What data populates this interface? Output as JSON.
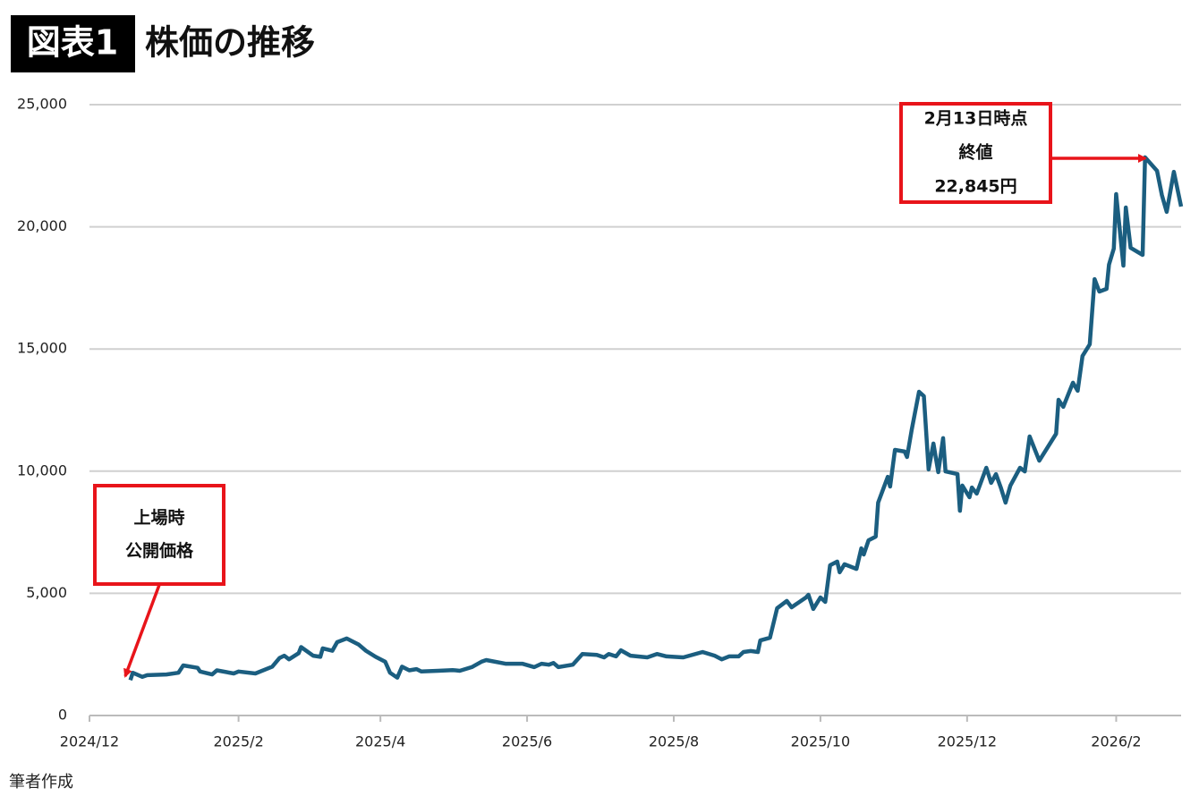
{
  "chart_data": {
    "type": "line",
    "title_badge": "図表1",
    "title": "株価の推移",
    "source": "筆者作成",
    "color": "#1b5e80",
    "grid": true,
    "xlim": [
      0,
      454
    ],
    "xticks": [
      {
        "value": 0,
        "label": "2024/12"
      },
      {
        "value": 62,
        "label": "2025/2"
      },
      {
        "value": 121,
        "label": "2025/4"
      },
      {
        "value": 182,
        "label": "2025/6"
      },
      {
        "value": 243,
        "label": "2025/8"
      },
      {
        "value": 304,
        "label": "2025/10"
      },
      {
        "value": 365,
        "label": "2025/12"
      },
      {
        "value": 427,
        "label": "2026/2"
      }
    ],
    "ylim": [
      0,
      25000
    ],
    "yticks": [
      0,
      {
        "value": 5000,
        "label": "5,000"
      },
      {
        "value": 10000,
        "label": "10,000"
      },
      {
        "value": 15000,
        "label": "15,000"
      },
      {
        "value": 20000,
        "label": "20,000"
      },
      {
        "value": 25000,
        "label": "25,000"
      }
    ],
    "x": [
      17,
      18,
      22,
      24,
      32,
      37,
      39,
      45,
      46,
      51,
      53,
      60,
      62,
      69,
      76,
      79,
      81,
      83,
      87,
      88,
      93,
      96,
      97,
      101,
      103,
      107,
      112,
      115,
      119,
      123,
      125,
      128,
      130,
      133,
      136,
      138,
      145,
      151,
      154,
      159,
      163,
      165,
      173,
      180,
      185,
      188,
      191,
      193,
      195,
      201,
      205,
      211,
      214,
      216,
      219,
      221,
      225,
      232,
      236,
      240,
      247,
      255,
      260,
      263,
      266,
      270,
      272,
      275,
      278,
      279,
      283,
      286,
      290,
      292,
      298,
      299,
      301,
      304,
      306,
      308,
      311,
      312,
      314,
      319,
      321,
      322,
      324,
      327,
      328,
      332,
      333,
      335,
      339,
      340,
      342,
      345,
      347,
      349,
      351,
      353,
      355,
      356,
      361,
      362,
      363,
      366,
      367,
      369,
      373,
      375,
      377,
      379,
      381,
      383,
      387,
      389,
      390,
      391,
      395,
      402,
      403,
      405,
      409,
      411,
      413,
      416,
      418,
      420,
      423,
      424,
      426,
      427,
      430,
      431,
      433,
      438,
      439,
      441,
      444,
      446,
      448,
      451,
      454
    ],
    "values": [
      1450,
      1750,
      1580,
      1650,
      1680,
      1750,
      2050,
      1950,
      1800,
      1680,
      1850,
      1720,
      1800,
      1720,
      2000,
      2350,
      2450,
      2300,
      2550,
      2800,
      2450,
      2400,
      2750,
      2650,
      3000,
      3150,
      2900,
      2650,
      2400,
      2200,
      1750,
      1550,
      2000,
      1850,
      1900,
      1800,
      1830,
      1860,
      1830,
      1980,
      2200,
      2270,
      2120,
      2120,
      1980,
      2120,
      2080,
      2150,
      1980,
      2080,
      2520,
      2480,
      2380,
      2520,
      2420,
      2670,
      2450,
      2380,
      2520,
      2420,
      2380,
      2600,
      2450,
      2300,
      2420,
      2420,
      2600,
      2640,
      2600,
      3070,
      3180,
      4390,
      4690,
      4430,
      4830,
      4940,
      4360,
      4830,
      4650,
      6150,
      6300,
      5860,
      6190,
      6000,
      6840,
      6590,
      7170,
      7320,
      8710,
      9770,
      9370,
      10870,
      10800,
      10580,
      11710,
      13250,
      13070,
      10070,
      11130,
      9960,
      11350,
      9990,
      9880,
      8380,
      9410,
      8930,
      9330,
      9080,
      10140,
      9520,
      9880,
      9330,
      8710,
      9410,
      10140,
      9990,
      10690,
      11420,
      10430,
      11530,
      12920,
      12630,
      13620,
      13290,
      14710,
      15190,
      17860,
      17350,
      17460,
      18450,
      19110,
      21340,
      18410,
      20790,
      19140,
      18850,
      22845,
      22620,
      22290,
      21300,
      20610,
      22250,
      20830
    ],
    "annotations": [
      {
        "lines": [
          "2月13日時点",
          "終値",
          "22,845円"
        ]
      },
      {
        "lines": [
          "上場時",
          "公開価格"
        ]
      }
    ]
  }
}
